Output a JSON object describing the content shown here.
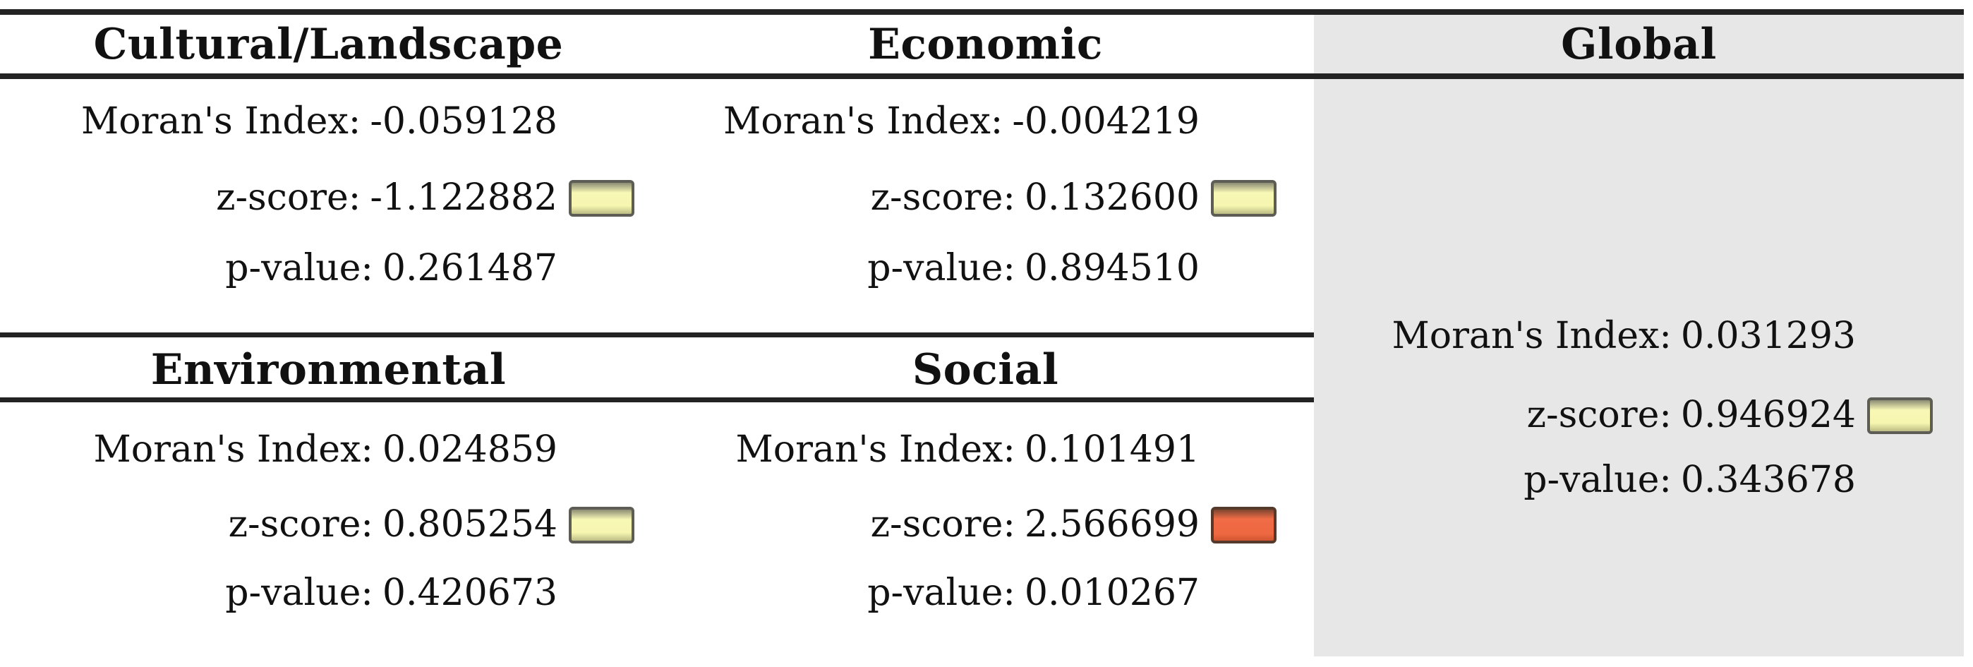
{
  "labels": {
    "morans_index": "Moran's Index:",
    "z_score": "z-score:",
    "p_value": "p-value:"
  },
  "panels": {
    "cultural_landscape": {
      "title": "Cultural/Landscape",
      "morans_index": "-0.059128",
      "z_score": "-1.122882",
      "p_value": "0.261487",
      "z_indicator": "yellow"
    },
    "economic": {
      "title": "Economic",
      "morans_index": "-0.004219",
      "z_score": "0.132600",
      "p_value": "0.894510",
      "z_indicator": "yellow"
    },
    "environmental": {
      "title": "Environmental",
      "morans_index": "0.024859",
      "z_score": "0.805254",
      "p_value": "0.420673",
      "z_indicator": "yellow"
    },
    "social": {
      "title": "Social",
      "morans_index": "0.101491",
      "z_score": "2.566699",
      "p_value": "0.010267",
      "z_indicator": "red"
    },
    "global": {
      "title": "Global",
      "morans_index": "0.031293",
      "z_score": "0.946924",
      "p_value": "0.343678",
      "z_indicator": "yellow"
    }
  },
  "colors": {
    "yellow_indicator": "#f6f6b0",
    "red_indicator": "#ee6a45",
    "global_column_bg": "#e7e7e7",
    "rule": "#232323",
    "text": "#111111"
  }
}
